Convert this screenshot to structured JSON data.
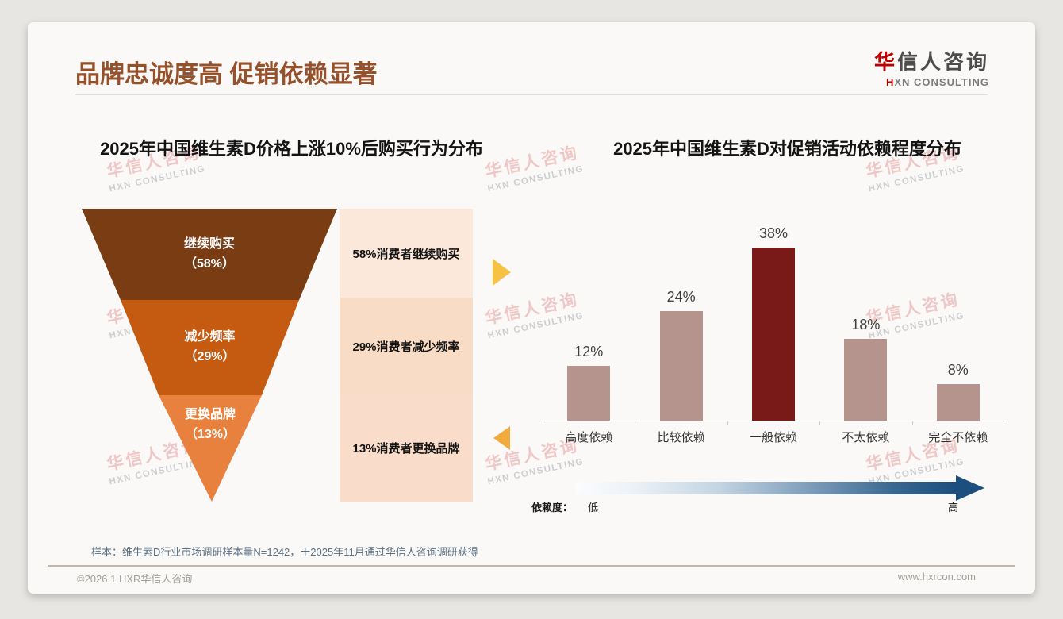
{
  "header": {
    "title": "品牌忠诚度高 促销依赖显著",
    "title_color": "#94512b",
    "logo": {
      "cn_accent": "华",
      "cn_rest": "信人咨询",
      "en_accent": "H",
      "en_rest": "XN CONSULTING"
    }
  },
  "watermark": {
    "cn": "华信人咨询",
    "en": "HXN CONSULTING"
  },
  "funnel": {
    "title": "2025年中国维生素D价格上涨10%后购买行为分布",
    "segments": [
      {
        "label": "继续购买",
        "pct": "（58%）",
        "value": 58,
        "color": "#7a3c12",
        "panel_color": "#fbe8da",
        "note": "58%消费者继续购买"
      },
      {
        "label": "减少频率",
        "pct": "（29%）",
        "value": 29,
        "color": "#c55a11",
        "panel_color": "#f9dcc6",
        "note": "29%消费者减少频率"
      },
      {
        "label": "更换品牌",
        "pct": "（13%）",
        "value": 13,
        "color": "#e8813d",
        "panel_color": "#f9ddca",
        "note": "13%消费者更换品牌"
      }
    ],
    "right_arrow_color": "#f5c243",
    "left_arrow_color": "#f0ab3c"
  },
  "dependency_legend": {
    "label": "依赖度：",
    "low": "低",
    "high": "高",
    "gradient_start": "#ffffff",
    "gradient_end": "#1c4f7e"
  },
  "footer": {
    "note": "样本：维生素D行业市场调研样本量N=1242，于2025年11月通过华信人咨询调研获得",
    "copyright": "©2026.1 HXR华信人咨询",
    "website": "www.hxrcon.com"
  },
  "chart_data": [
    {
      "type": "funnel",
      "title": "2025年中国维生素D价格上涨10%后购买行为分布",
      "categories": [
        "继续购买",
        "减少频率",
        "更换品牌"
      ],
      "values": [
        58,
        29,
        13
      ],
      "unit": "%",
      "annotations": [
        "58%消费者继续购买",
        "29%消费者减少频率",
        "13%消费者更换品牌"
      ],
      "colors": [
        "#7a3c12",
        "#c55a11",
        "#e8813d"
      ]
    },
    {
      "type": "bar",
      "title": "2025年中国维生素D对促销活动依赖程度分布",
      "categories": [
        "高度依赖",
        "比较依赖",
        "一般依赖",
        "不太依赖",
        "完全不依赖"
      ],
      "values": [
        12,
        24,
        38,
        18,
        8
      ],
      "value_labels": [
        "12%",
        "24%",
        "38%",
        "18%",
        "8%"
      ],
      "highlight_index": 2,
      "bar_color": "#b5948e",
      "highlight_color": "#7a1a18",
      "xlabel": "",
      "ylabel": "",
      "ylim": [
        0,
        43
      ],
      "grid": false,
      "legend_position": "none",
      "footnote_legend": {
        "label": "依赖度：",
        "low": "低",
        "high": "高"
      }
    }
  ]
}
